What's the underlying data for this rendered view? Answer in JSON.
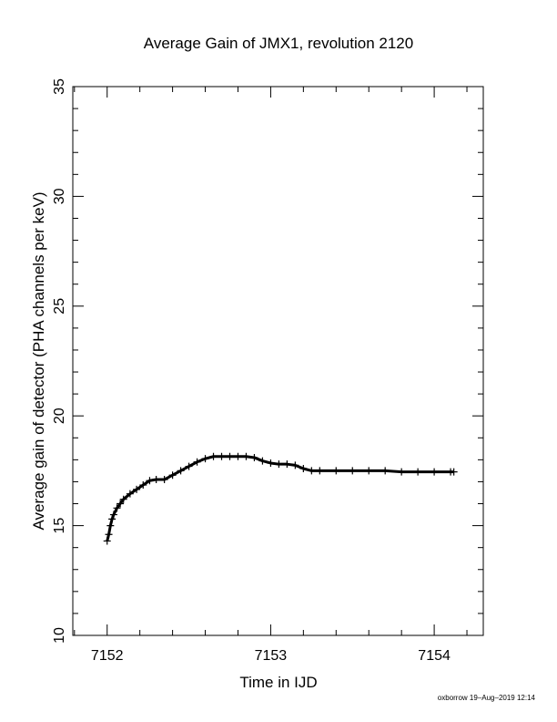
{
  "chart_data": {
    "type": "scatter",
    "title": "Average Gain of JMX1, revolution 2120",
    "xlabel": "Time in IJD",
    "ylabel": "Average gain of detector (PHA channels per keV)",
    "xlim": [
      7151.79,
      7154.3
    ],
    "ylim": [
      10,
      35
    ],
    "x_ticks": [
      7152,
      7153,
      7154
    ],
    "x_tick_labels": [
      "7152",
      "7153",
      "7154"
    ],
    "y_ticks": [
      10,
      15,
      20,
      25,
      30,
      35
    ],
    "y_tick_labels": [
      "10",
      "15",
      "20",
      "25",
      "30",
      "35"
    ],
    "marker": "+",
    "grid": false,
    "series": [
      {
        "x": [
          7152.0,
          7152.01,
          7152.02,
          7152.03,
          7152.04,
          7152.06,
          7152.08,
          7152.1,
          7152.14,
          7152.18,
          7152.22,
          7152.26,
          7152.3,
          7152.35,
          7152.4,
          7152.45,
          7152.5,
          7152.55,
          7152.6,
          7152.65,
          7152.7,
          7152.75,
          7152.8,
          7152.85,
          7152.9,
          7152.95,
          7153.0,
          7153.05,
          7153.1,
          7153.15,
          7153.2,
          7153.25,
          7153.3,
          7153.4,
          7153.5,
          7153.6,
          7153.7,
          7153.8,
          7153.9,
          7154.0,
          7154.1,
          7154.12
        ],
        "y": [
          14.3,
          14.6,
          15.0,
          15.3,
          15.5,
          15.8,
          16.0,
          16.2,
          16.45,
          16.65,
          16.85,
          17.05,
          17.1,
          17.1,
          17.3,
          17.5,
          17.7,
          17.9,
          18.05,
          18.15,
          18.15,
          18.15,
          18.15,
          18.15,
          18.1,
          17.95,
          17.85,
          17.8,
          17.8,
          17.75,
          17.6,
          17.5,
          17.5,
          17.5,
          17.5,
          17.5,
          17.5,
          17.45,
          17.45,
          17.45,
          17.45,
          17.45
        ]
      }
    ]
  },
  "footer": "oxborrow 19–Aug–2019 12:14"
}
